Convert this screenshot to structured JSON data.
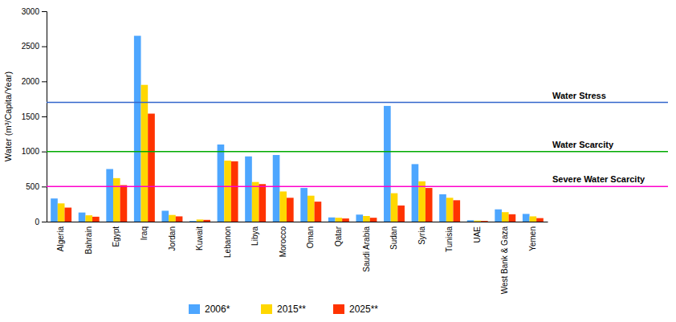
{
  "chart_data": {
    "type": "bar",
    "categories": [
      "Algeria",
      "Bahrain",
      "Egypt",
      "Iraq",
      "Jordan",
      "Kuwait",
      "Lebanon",
      "Libya",
      "Morocco",
      "Oman",
      "Qatar",
      "Saudi Arabia",
      "Sudan",
      "Syria",
      "Tunisia",
      "UAE",
      "West Bank & Gaza",
      "Yemen"
    ],
    "series": [
      {
        "name": "2006*",
        "color": "#4DA6FF",
        "values": [
          330,
          130,
          750,
          2650,
          155,
          10,
          1100,
          930,
          950,
          480,
          60,
          100,
          1650,
          820,
          390,
          20,
          175,
          110
        ]
      },
      {
        "name": "2015**",
        "color": "#FFD700",
        "values": [
          260,
          90,
          620,
          1950,
          95,
          30,
          870,
          565,
          430,
          370,
          55,
          80,
          405,
          575,
          340,
          15,
          135,
          75
        ]
      },
      {
        "name": "2025**",
        "color": "#FF3300",
        "values": [
          200,
          70,
          520,
          1540,
          75,
          25,
          860,
          535,
          340,
          285,
          45,
          55,
          230,
          480,
          305,
          10,
          105,
          50
        ]
      }
    ],
    "annotations": [
      {
        "text": "Water Stress",
        "y": 1700,
        "color": "#3366CC"
      },
      {
        "text": "Water Scarcity",
        "y": 1000,
        "color": "#00AA00"
      },
      {
        "text": "Severe Water Scarcity",
        "y": 500,
        "color": "#FF00CC"
      }
    ],
    "ylabel": "Water (m³/Capita/Year)",
    "ylim": [
      0,
      3000
    ],
    "yticks": [
      0,
      500,
      1000,
      1500,
      2000,
      2500,
      3000
    ],
    "grid": false,
    "legend": "bottom"
  }
}
